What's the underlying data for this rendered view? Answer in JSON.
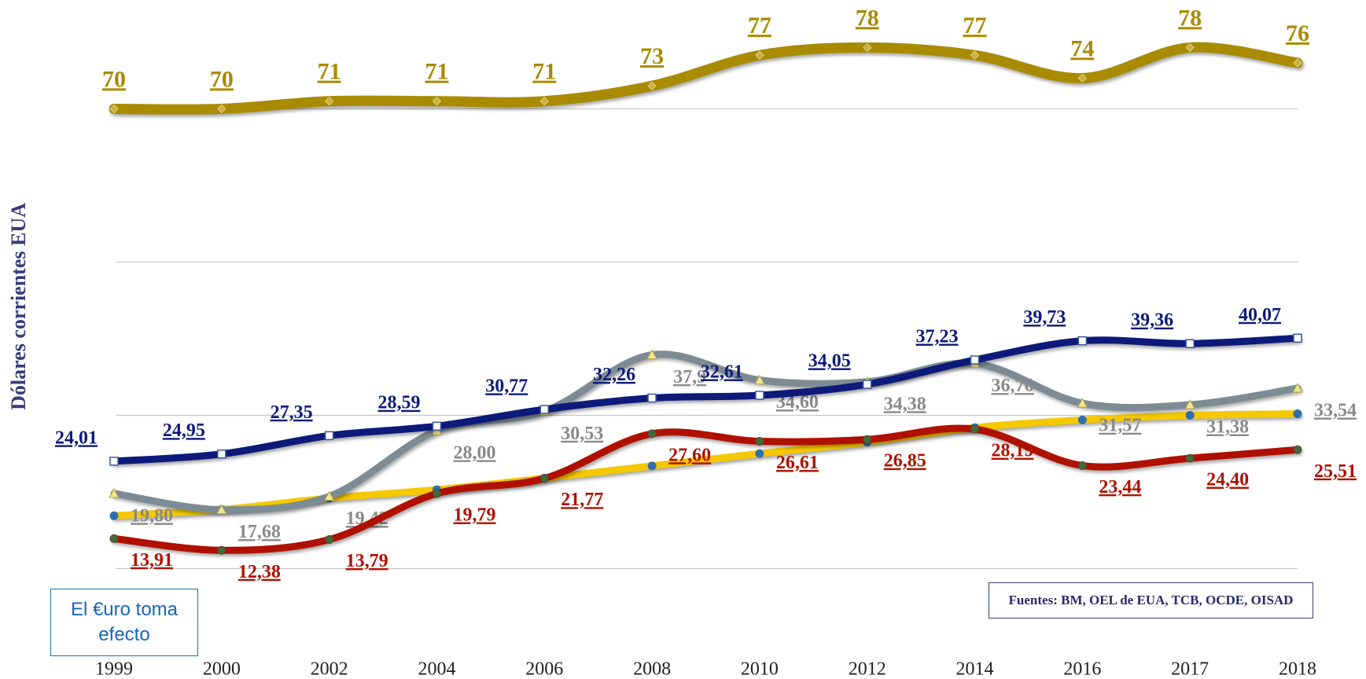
{
  "chart_data": {
    "type": "line",
    "ylabel": "Dólares corrientes EUA",
    "annotations": [
      "El €uro toma efecto",
      "Fuentes: BM, OEL de EUA, TCB, OCDE, OISAD"
    ],
    "categories": [
      "1999",
      "2000",
      "2002",
      "2004",
      "2006",
      "2008",
      "2010",
      "2012",
      "2014",
      "2016",
      "2017",
      "2018"
    ],
    "ylim": [
      0,
      80
    ],
    "yticks": [
      10,
      30,
      50,
      70
    ],
    "grid": true,
    "series": [
      {
        "color": "#a88b00",
        "values": [
          70,
          70,
          71,
          71,
          71,
          73,
          77,
          78,
          77,
          74,
          78,
          76
        ]
      },
      {
        "color": "#7d8c94",
        "values": [
          19.8,
          17.68,
          19.42,
          28.0,
          30.53,
          37.9,
          34.6,
          34.38,
          36.76,
          31.57,
          31.38,
          33.54
        ],
        "value_labels": [
          "19,80",
          "17,68",
          "19,42",
          "28,00",
          "30,53",
          "37,9",
          "34,60",
          "34,38",
          "36,76",
          "31,57",
          "31,38",
          "33,54"
        ]
      },
      {
        "color": "#f5c800",
        "values": [
          16.9,
          17.7,
          19.2,
          20.3,
          21.8,
          23.4,
          25.0,
          26.5,
          28.4,
          29.4,
          30.0,
          30.2
        ]
      },
      {
        "color": "#0d1a7a",
        "values": [
          24.01,
          24.95,
          27.35,
          28.59,
          30.77,
          32.26,
          32.61,
          34.05,
          37.23,
          39.73,
          39.36,
          40.07
        ],
        "value_labels": [
          "24,01",
          "24,95",
          "27,35",
          "28,59",
          "30,77",
          "32,26",
          "32,61",
          "34,05",
          "37,23",
          "39,73",
          "39,36",
          "40,07"
        ]
      },
      {
        "color": "#b01000",
        "values": [
          13.91,
          12.38,
          13.79,
          19.79,
          21.77,
          27.6,
          26.61,
          26.85,
          28.19,
          23.44,
          24.4,
          25.51
        ],
        "value_labels": [
          "13,91",
          "12,38",
          "13,79",
          "19,79",
          "21,77",
          "27,60",
          "26,61",
          "26,85",
          "28,19",
          "23,44",
          "24,40",
          "25,51"
        ]
      }
    ]
  }
}
